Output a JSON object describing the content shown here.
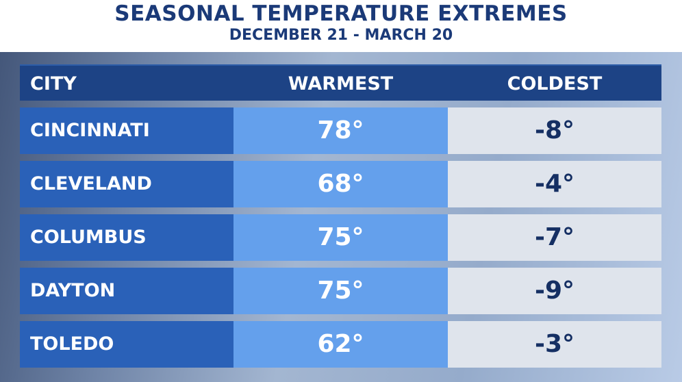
{
  "title": "SEASONAL TEMPERATURE EXTREMES",
  "subtitle": "DECEMBER 21 - MARCH 20",
  "colors": {
    "title": "#1b3a78",
    "header_bg": "#1d4385",
    "city_bg": "#2a61b8",
    "warmest_bg": "#64a0ec",
    "coldest_bg": "#dfe4ec",
    "coldest_text": "#152f63"
  },
  "chart_data": {
    "type": "table",
    "title": "SEASONAL TEMPERATURE EXTREMES",
    "subtitle": "DECEMBER 21 - MARCH 20",
    "columns": [
      "CITY",
      "WARMEST",
      "COLDEST"
    ],
    "rows": [
      {
        "city": "CINCINNATI",
        "warmest": "78°",
        "coldest": "-8°"
      },
      {
        "city": "CLEVELAND",
        "warmest": "68°",
        "coldest": "-4°"
      },
      {
        "city": "COLUMBUS",
        "warmest": "75°",
        "coldest": "-7°"
      },
      {
        "city": "DAYTON",
        "warmest": "75°",
        "coldest": "-9°"
      },
      {
        "city": "TOLEDO",
        "warmest": "62°",
        "coldest": "-3°"
      }
    ]
  }
}
